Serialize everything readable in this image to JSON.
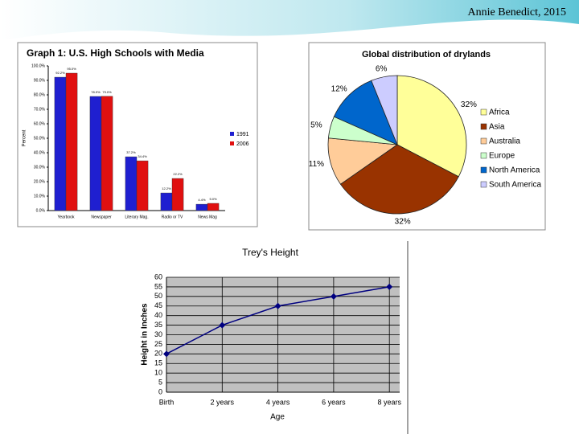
{
  "header": {
    "author": "Annie Benedict, 2015"
  },
  "chart_data": [
    {
      "type": "bar",
      "title": "Graph 1: U.S. High Schools with Media",
      "y_label": "Percent",
      "categories": [
        "Yearbook",
        "Newspaper",
        "Literary Mag.",
        "Radio or TV",
        "News Mag"
      ],
      "series": [
        {
          "name": "1991",
          "color": "#1f1fd0",
          "values": [
            92.2,
            78.9,
            37.2,
            12.2,
            4.4
          ],
          "value_labels": [
            "92.2%",
            "78.9%",
            "37.2%",
            "12.2%",
            "4.4%"
          ]
        },
        {
          "name": "2006",
          "color": "#e01010",
          "values": [
            95.0,
            79.0,
            34.4,
            22.2,
            5.0
          ],
          "value_labels": [
            "95.0%",
            "79.0%",
            "34.4%",
            "22.2%",
            "5.0%"
          ]
        }
      ],
      "ylim": [
        0,
        100
      ],
      "yticks": [
        {
          "value": 0,
          "label": "0.0%"
        },
        {
          "value": 10,
          "label": "10.0%"
        },
        {
          "value": 20,
          "label": "20.0%"
        },
        {
          "value": 30,
          "label": "30.0%"
        },
        {
          "value": 40,
          "label": "40.0%"
        },
        {
          "value": 50,
          "label": "50.0%"
        },
        {
          "value": 60,
          "label": "60.0%"
        },
        {
          "value": 70,
          "label": "70.0%"
        },
        {
          "value": 80,
          "label": "80.0%"
        },
        {
          "value": 90,
          "label": "90.0%"
        },
        {
          "value": 100,
          "label": "100.0%"
        }
      ],
      "legend": "right"
    },
    {
      "type": "pie",
      "title": "Global distribution of drylands",
      "categories": [
        "Africa",
        "Asia",
        "Australia",
        "Europe",
        "North America",
        "South America"
      ],
      "values": [
        32,
        32,
        11,
        5,
        12,
        6
      ],
      "value_labels": [
        "32%",
        "32%",
        "11%",
        "5%",
        "12%",
        "6%"
      ],
      "colors": [
        "#ffff99",
        "#993300",
        "#ffcc99",
        "#ccffcc",
        "#0066cc",
        "#ccccff"
      ],
      "legend": "right"
    },
    {
      "type": "line",
      "title": "Trey's Height",
      "x_label": "Age",
      "y_label": "Height in Inches",
      "categories": [
        "Birth",
        "2 years",
        "4 years",
        "6 years",
        "8 years"
      ],
      "values": [
        20,
        35,
        45,
        50,
        55
      ],
      "color": "#000080",
      "ylim": [
        0,
        60
      ],
      "yticks": [
        0,
        5,
        10,
        15,
        20,
        25,
        30,
        35,
        40,
        45,
        50,
        55,
        60
      ],
      "grid": true
    }
  ]
}
